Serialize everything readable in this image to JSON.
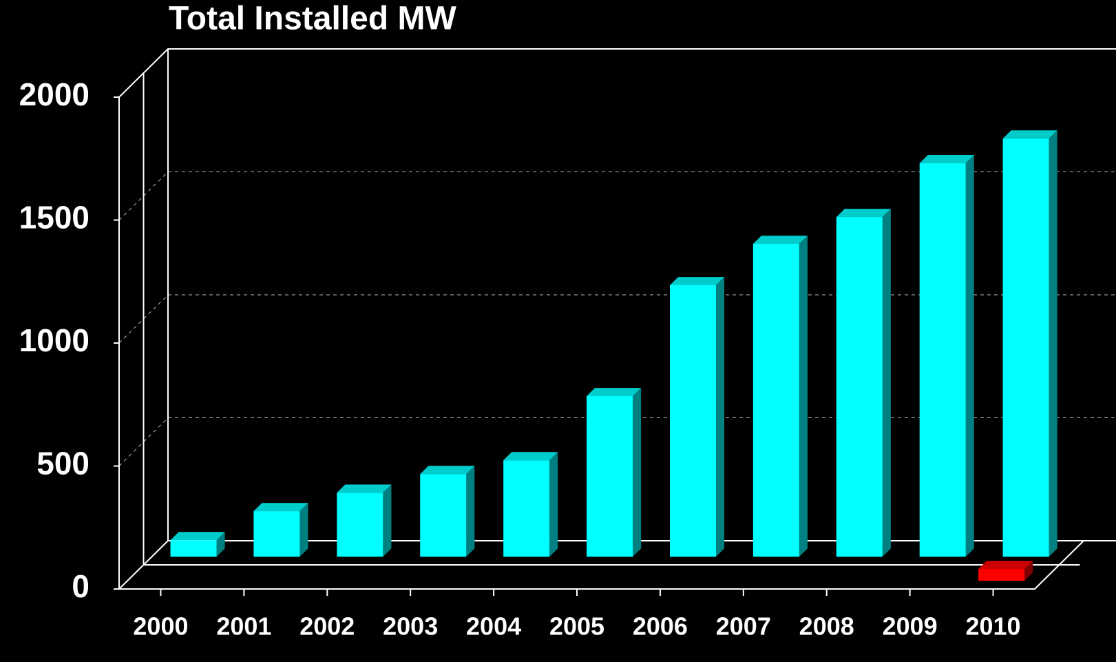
{
  "chart_data": {
    "type": "bar3d",
    "title": "Total Installed MW",
    "categories": [
      "2000",
      "2001",
      "2002",
      "2003",
      "2004",
      "2005",
      "2006",
      "2007",
      "2008",
      "2009",
      "2010"
    ],
    "series": [
      {
        "color": "#00ffff",
        "values": [
          67,
          185,
          260,
          336,
          392,
          653,
          1104,
          1272,
          1381,
          1600,
          1700
        ]
      },
      {
        "color": "#ff0000",
        "values": [
          null,
          null,
          null,
          null,
          null,
          null,
          null,
          null,
          null,
          null,
          48
        ]
      }
    ],
    "ylim": [
      0,
      2000
    ],
    "yticks": [
      0,
      500,
      1000,
      1500,
      2000
    ],
    "grid": true
  }
}
